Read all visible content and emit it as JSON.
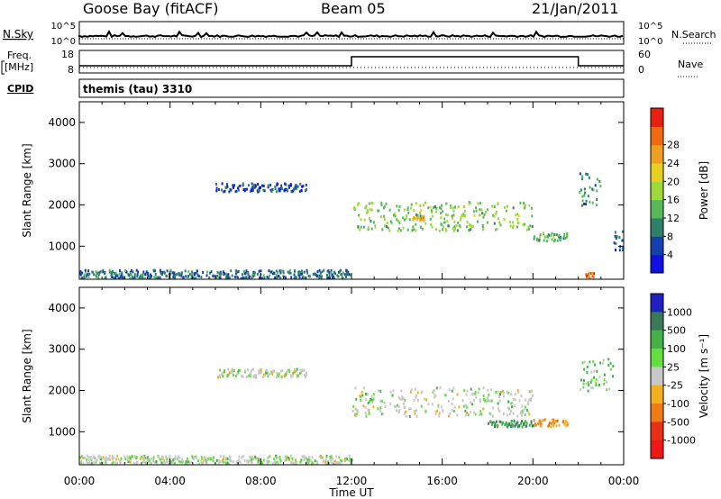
{
  "header": {
    "station": "Goose Bay (fitACF)",
    "beam": "Beam 05",
    "date": "21/Jan/2011"
  },
  "status_panels": {
    "nsky_label": "N.Sky",
    "nsearch_label": "N.Search",
    "freq_label_line1": "Freq.",
    "freq_label_line2": "[MHz]",
    "nave_label": "Nave",
    "cpid_label": "CPID",
    "cpid_value": "themis (tau) 3310",
    "noise_left_ticks": [
      "10^5",
      "10^0"
    ],
    "noise_right_ticks": [
      "10^5",
      "10^0"
    ],
    "freq_left_ticks": [
      "18",
      "8"
    ],
    "nave_right_ticks": [
      "60",
      "0"
    ]
  },
  "chart_data": [
    {
      "type": "heatmap",
      "name": "power",
      "ylabel": "Slant Range [km]",
      "ylim": [
        200,
        4500
      ],
      "yticks": [
        "1000",
        "2000",
        "3000",
        "4000"
      ],
      "colorbar_label": "Power [dB]",
      "colorbar_ticks": [
        "4",
        "8",
        "12",
        "16",
        "20",
        "24",
        "28"
      ],
      "colorbar_colors": [
        "#1010e0",
        "#1540b0",
        "#2f7f6a",
        "#58b85a",
        "#9fd83a",
        "#e8d020",
        "#f0a020",
        "#ef6a10",
        "#e82010"
      ],
      "echo_regions": [
        {
          "t": [
            0.0,
            12.0
          ],
          "r": [
            250,
            450
          ],
          "power": 8
        },
        {
          "t": [
            6.0,
            10.0
          ],
          "r": [
            2350,
            2550
          ],
          "power": 6
        },
        {
          "t": [
            12.0,
            20.0
          ],
          "r": [
            1400,
            2100
          ],
          "power": 14
        },
        {
          "t": [
            14.5,
            15.2
          ],
          "r": [
            1650,
            1750
          ],
          "power": 22
        },
        {
          "t": [
            20.0,
            21.5
          ],
          "r": [
            1150,
            1350
          ],
          "power": 12
        },
        {
          "t": [
            22.0,
            23.0
          ],
          "r": [
            2000,
            2800
          ],
          "power": 10
        },
        {
          "t": [
            22.3,
            22.7
          ],
          "r": [
            250,
            400
          ],
          "power": 26
        },
        {
          "t": [
            23.5,
            24.0
          ],
          "r": [
            900,
            1400
          ],
          "power": 6
        }
      ]
    },
    {
      "type": "heatmap",
      "name": "velocity",
      "xlabel": "Time UT",
      "ylabel": "Slant Range [km]",
      "ylim": [
        200,
        4500
      ],
      "yticks": [
        "1000",
        "2000",
        "3000",
        "4000"
      ],
      "xticks": [
        "00:00",
        "04:00",
        "08:00",
        "12:00",
        "16:00",
        "20:00",
        "00:00"
      ],
      "colorbar_label": "Velocity [m s⁻¹]",
      "colorbar_ticks": [
        "1000",
        "500",
        "100",
        "25",
        "-25",
        "-100",
        "-500",
        "-1000"
      ],
      "colorbar_colors": [
        "#2020c0",
        "#3a7a5a",
        "#48b048",
        "#66dd40",
        "#c8c8c8",
        "#f0b020",
        "#ef7a18",
        "#e83018",
        "#ee1818"
      ],
      "echo_regions": [
        {
          "t": [
            6.0,
            10.0
          ],
          "r": [
            2350,
            2550
          ],
          "velocity": 0
        },
        {
          "t": [
            12.0,
            20.0
          ],
          "r": [
            1400,
            2100
          ],
          "velocity": 0
        },
        {
          "t": [
            18.0,
            20.0
          ],
          "r": [
            1150,
            1300
          ],
          "velocity": 100
        },
        {
          "t": [
            20.0,
            21.5
          ],
          "r": [
            1150,
            1350
          ],
          "velocity": -100
        },
        {
          "t": [
            22.0,
            23.5
          ],
          "r": [
            2000,
            2800
          ],
          "velocity": 25
        },
        {
          "t": [
            0.0,
            12.0
          ],
          "r": [
            250,
            450
          ],
          "velocity": 0
        }
      ]
    }
  ]
}
